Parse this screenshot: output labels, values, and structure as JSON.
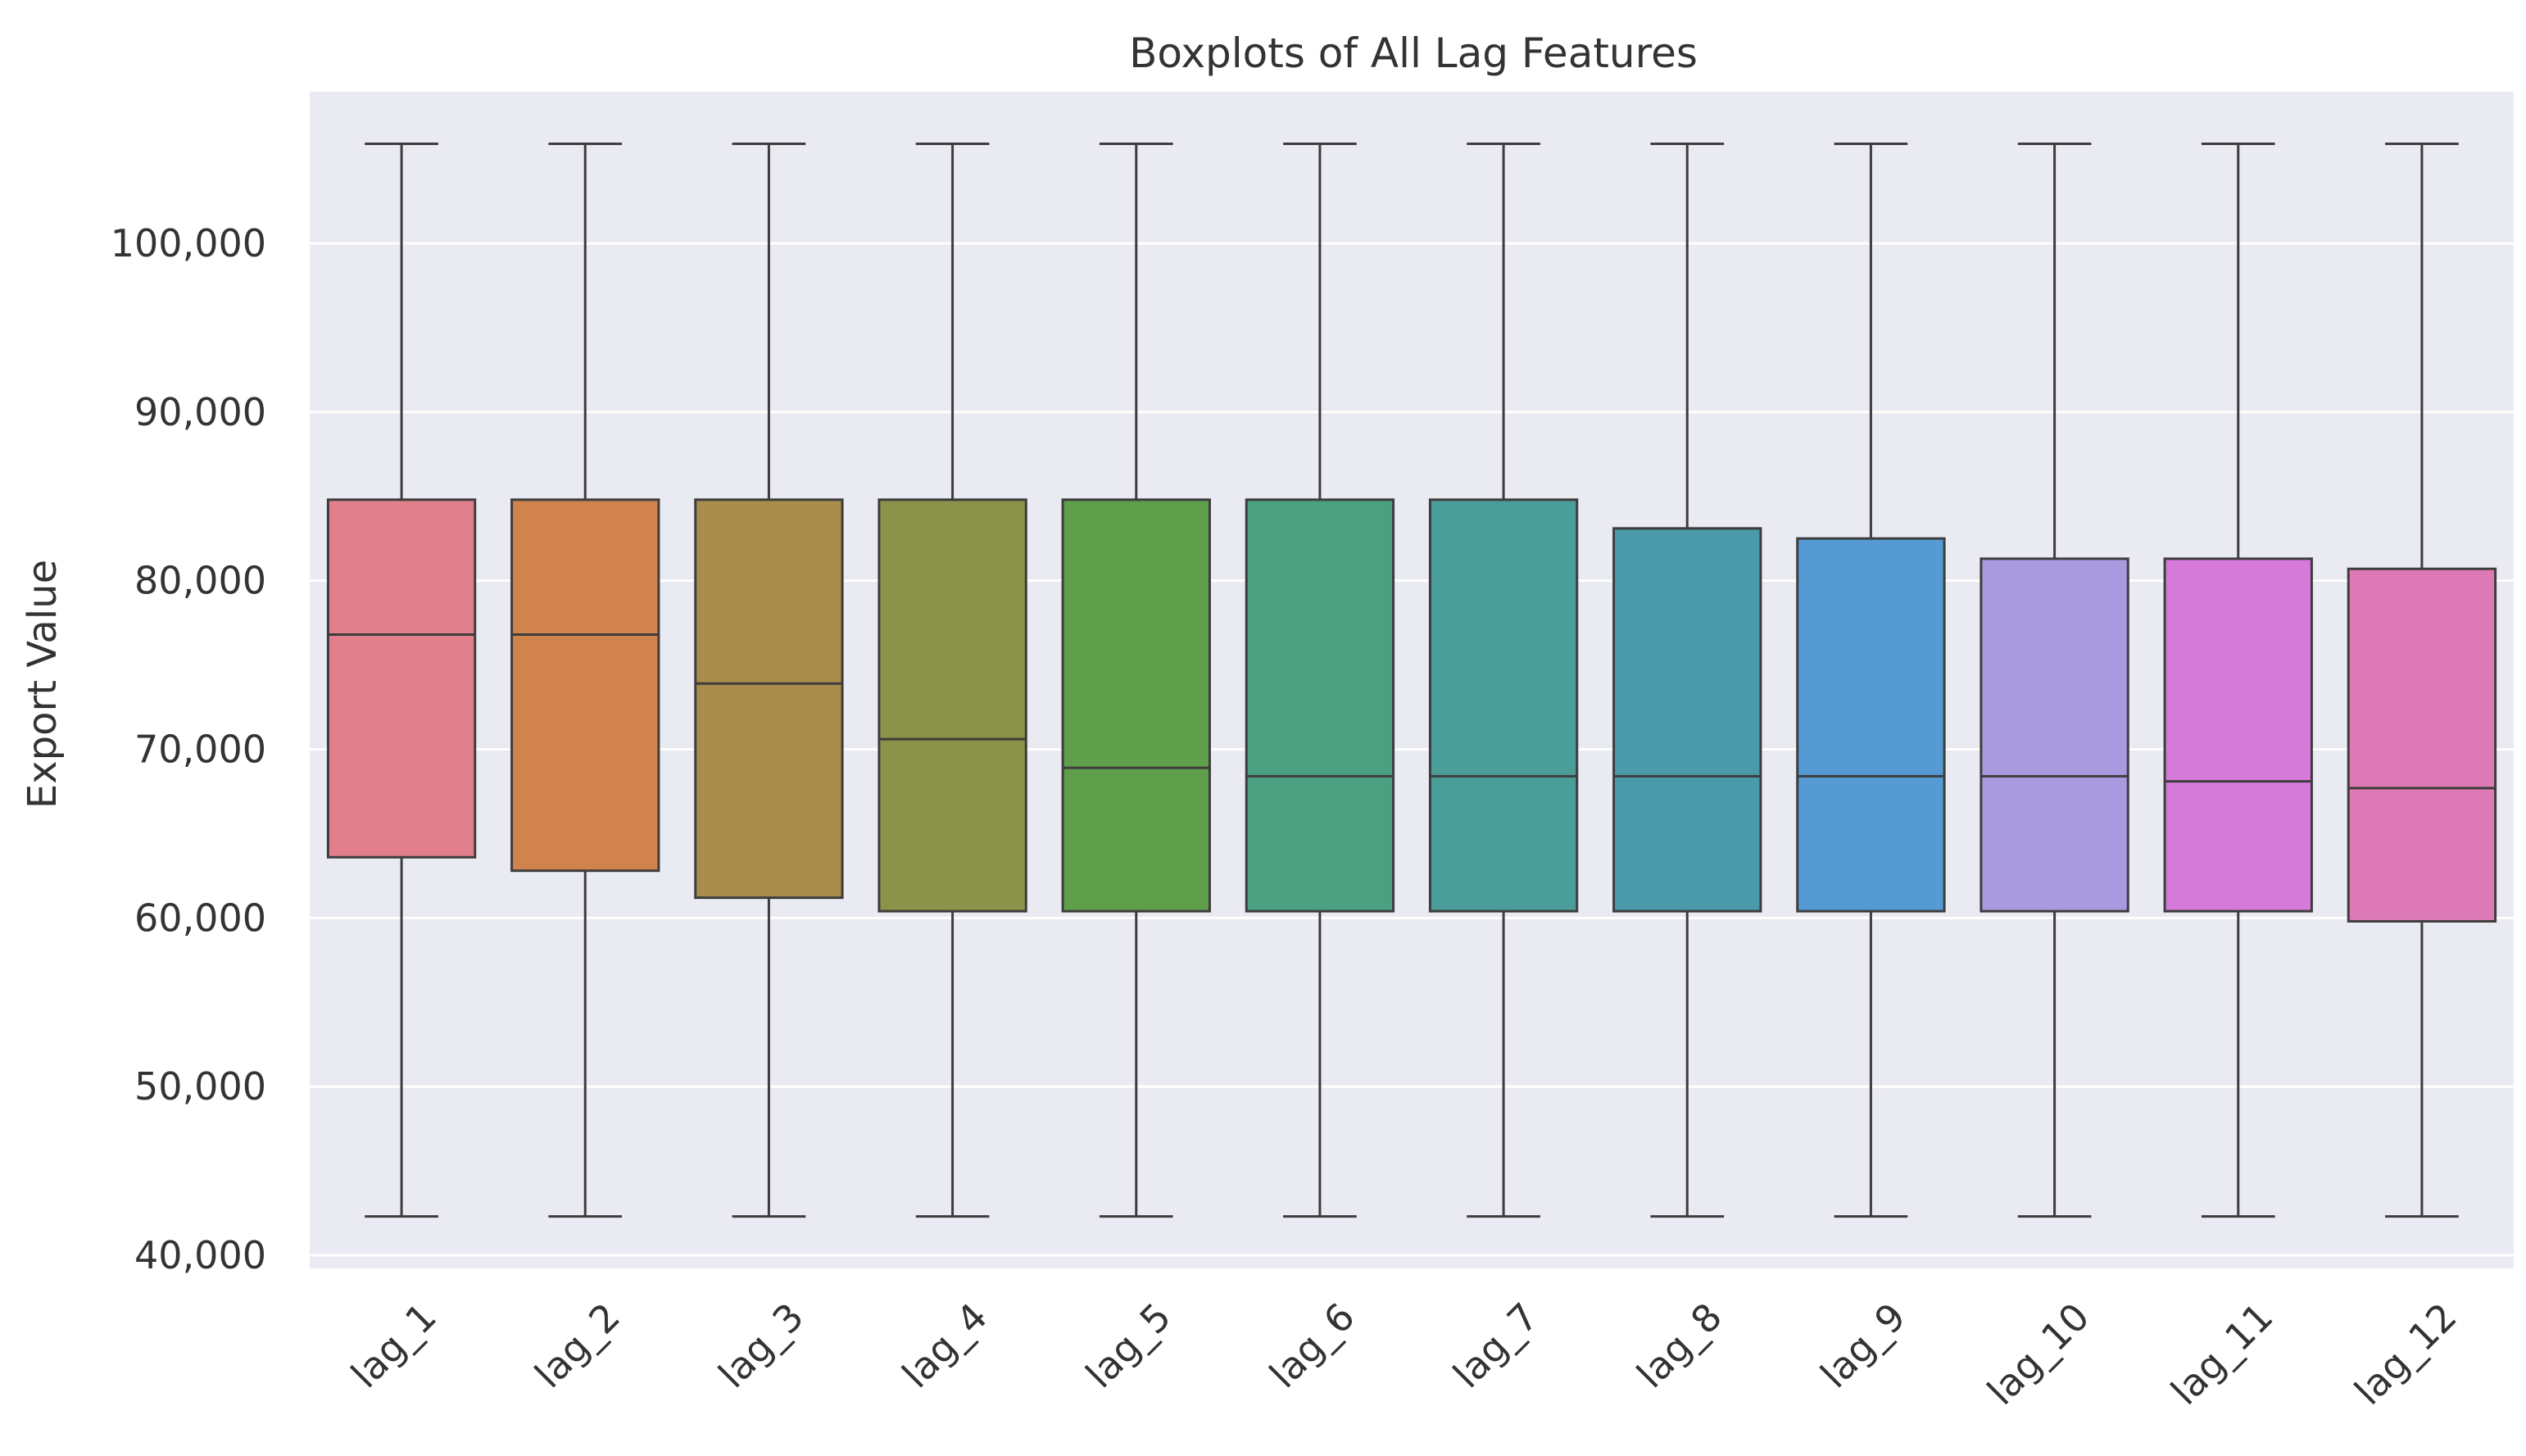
{
  "chart_data": {
    "type": "boxplot",
    "title": "Boxplots of All Lag Features",
    "xlabel": "",
    "ylabel": "Export Value",
    "ylim": [
      40000,
      106000
    ],
    "yticks": [
      40000,
      50000,
      60000,
      70000,
      80000,
      90000,
      100000
    ],
    "ytick_labels": [
      "40,000",
      "50,000",
      "60,000",
      "70,000",
      "80,000",
      "90,000",
      "100,000"
    ],
    "grid": true,
    "categories": [
      "lag_1",
      "lag_2",
      "lag_3",
      "lag_4",
      "lag_5",
      "lag_6",
      "lag_7",
      "lag_8",
      "lag_9",
      "lag_10",
      "lag_11",
      "lag_12"
    ],
    "boxes": [
      {
        "label": "lag_1",
        "whisker_low": 42300,
        "q1": 63600,
        "median": 76800,
        "q3": 84800,
        "whisker_high": 105900,
        "color": "#e1808c"
      },
      {
        "label": "lag_2",
        "whisker_low": 42300,
        "q1": 62800,
        "median": 76800,
        "q3": 84800,
        "whisker_high": 105900,
        "color": "#d0834c"
      },
      {
        "label": "lag_3",
        "whisker_low": 42300,
        "q1": 61200,
        "median": 73900,
        "q3": 84800,
        "whisker_high": 105900,
        "color": "#a88d4c"
      },
      {
        "label": "lag_4",
        "whisker_low": 42300,
        "q1": 60400,
        "median": 70600,
        "q3": 84800,
        "whisker_high": 105900,
        "color": "#8b9349"
      },
      {
        "label": "lag_5",
        "whisker_low": 42300,
        "q1": 60400,
        "median": 68900,
        "q3": 84800,
        "whisker_high": 105900,
        "color": "#5f9e4b"
      },
      {
        "label": "lag_6",
        "whisker_low": 42300,
        "q1": 60400,
        "median": 68400,
        "q3": 84800,
        "whisker_high": 105900,
        "color": "#4aa080"
      },
      {
        "label": "lag_7",
        "whisker_low": 42300,
        "q1": 60400,
        "median": 68400,
        "q3": 84800,
        "whisker_high": 105900,
        "color": "#4a9d99"
      },
      {
        "label": "lag_8",
        "whisker_low": 42300,
        "q1": 60400,
        "median": 68400,
        "q3": 83100,
        "whisker_high": 105900,
        "color": "#4a9aaa"
      },
      {
        "label": "lag_9",
        "whisker_low": 42300,
        "q1": 60400,
        "median": 68400,
        "q3": 82500,
        "whisker_high": 105900,
        "color": "#559ad3"
      },
      {
        "label": "lag_10",
        "whisker_low": 42300,
        "q1": 60400,
        "median": 68400,
        "q3": 81300,
        "whisker_high": 105900,
        "color": "#a99ae0"
      },
      {
        "label": "lag_11",
        "whisker_low": 42300,
        "q1": 60400,
        "median": 68100,
        "q3": 81300,
        "whisker_high": 105900,
        "color": "#d57ad9"
      },
      {
        "label": "lag_12",
        "whisker_low": 42300,
        "q1": 59800,
        "median": 67700,
        "q3": 80700,
        "whisker_high": 105900,
        "color": "#dd7ab6"
      }
    ],
    "colors": {
      "plot_background": "#eaeaf2",
      "grid": "#ffffff",
      "line": "#3d3d3d",
      "text": "#333333"
    }
  }
}
